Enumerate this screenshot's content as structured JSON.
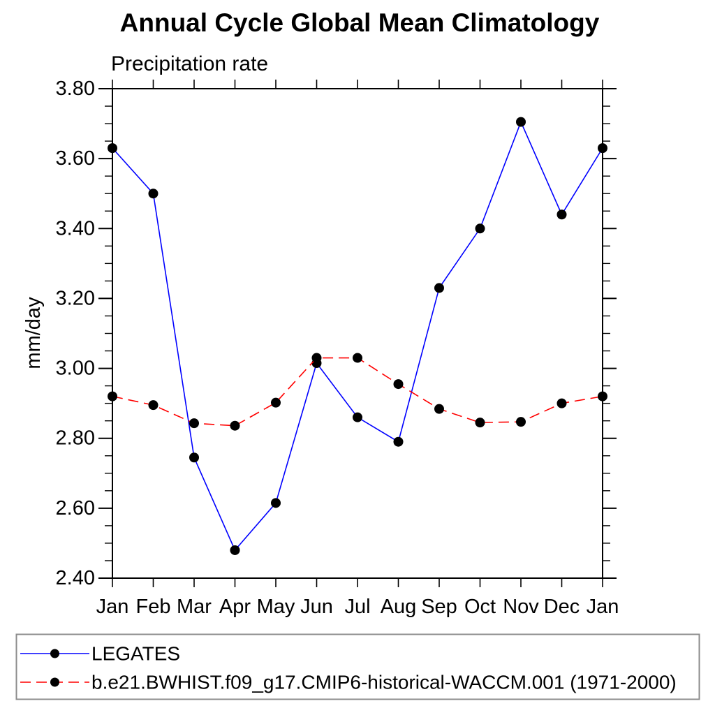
{
  "title": "Annual Cycle Global Mean Climatology",
  "subtitle": "Precipitation rate",
  "y_axis_label": "mm/day",
  "colors": {
    "axis": "#000000",
    "marker": "#000000",
    "legates_line": "#0000ff",
    "waccm_line": "#ff0000",
    "legend_border": "#8c8c8c"
  },
  "chart_data": {
    "type": "line",
    "title": "Annual Cycle Global Mean Climatology",
    "subtitle": "Precipitation rate",
    "xlabel": "",
    "ylabel": "mm/day",
    "categories": [
      "Jan",
      "Feb",
      "Mar",
      "Apr",
      "May",
      "Jun",
      "Jul",
      "Aug",
      "Sep",
      "Oct",
      "Nov",
      "Dec",
      "Jan"
    ],
    "series": [
      {
        "name": "LEGATES",
        "color": "#0000ff",
        "style": "solid",
        "marker": "filled-circle",
        "values": [
          3.63,
          3.5,
          2.745,
          2.48,
          2.615,
          3.015,
          2.86,
          2.79,
          3.23,
          3.4,
          3.705,
          3.44,
          3.63
        ]
      },
      {
        "name": "b.e21.BWHIST.f09_g17.CMIP6-historical-WACCM.001 (1971-2000)",
        "color": "#ff0000",
        "style": "dashed",
        "marker": "filled-circle",
        "values": [
          2.92,
          2.895,
          2.843,
          2.836,
          2.902,
          3.03,
          3.03,
          2.955,
          2.884,
          2.845,
          2.847,
          2.9,
          2.92
        ]
      }
    ],
    "ylim": [
      2.4,
      3.8
    ],
    "y_major_step": 0.2,
    "y_minor_step": 0.05,
    "y_tick_labels": [
      "2.40",
      "2.60",
      "2.80",
      "3.00",
      "3.20",
      "3.40",
      "3.60",
      "3.80"
    ],
    "grid": false,
    "legend_position": "bottom"
  }
}
